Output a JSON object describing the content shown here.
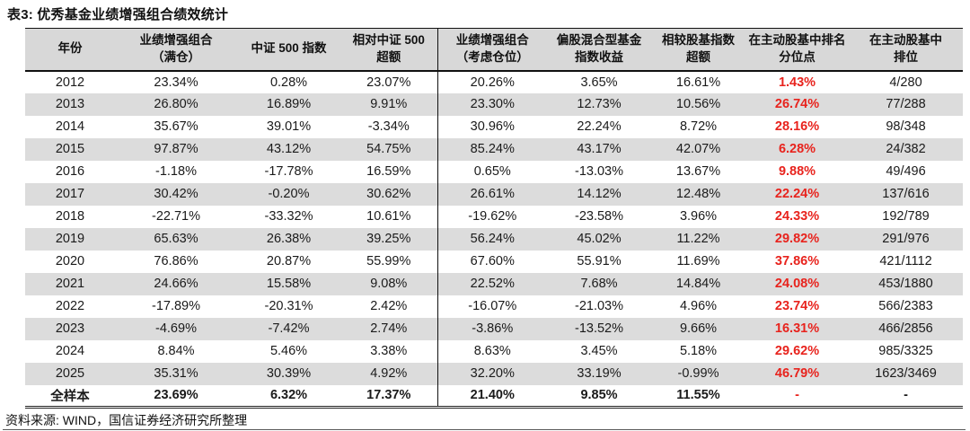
{
  "title": "表3: 优秀基金业绩增强组合绩效统计",
  "source": "资料来源: WIND，国信证券经济研究所整理",
  "colors": {
    "accent_red": "#e8231d",
    "header_bg": "#d8d8d8",
    "stripe_bg": "#dcdcdc",
    "border_dark": "#111111"
  },
  "table": {
    "columns": [
      "年份",
      "业绩增强组合\n（满仓）",
      "中证 500 指数",
      "相对中证 500\n超额",
      "业绩增强组合\n（考虑仓位）",
      "偏股混合型基金\n指数收益",
      "相较股基指数\n超额",
      "在主动股基中排名\n分位点",
      "在主动股基中\n排位"
    ],
    "rows": [
      [
        "2012",
        "23.34%",
        "0.28%",
        "23.07%",
        "20.26%",
        "3.65%",
        "16.61%",
        "1.43%",
        "4/280"
      ],
      [
        "2013",
        "26.80%",
        "16.89%",
        "9.91%",
        "23.30%",
        "12.73%",
        "10.56%",
        "26.74%",
        "77/288"
      ],
      [
        "2014",
        "35.67%",
        "39.01%",
        "-3.34%",
        "30.96%",
        "22.24%",
        "8.72%",
        "28.16%",
        "98/348"
      ],
      [
        "2015",
        "97.87%",
        "43.12%",
        "54.75%",
        "85.24%",
        "43.17%",
        "42.07%",
        "6.28%",
        "24/382"
      ],
      [
        "2016",
        "-1.18%",
        "-17.78%",
        "16.59%",
        "0.65%",
        "-13.03%",
        "13.67%",
        "9.88%",
        "49/496"
      ],
      [
        "2017",
        "30.42%",
        "-0.20%",
        "30.62%",
        "26.61%",
        "14.12%",
        "12.48%",
        "22.24%",
        "137/616"
      ],
      [
        "2018",
        "-22.71%",
        "-33.32%",
        "10.61%",
        "-19.62%",
        "-23.58%",
        "3.96%",
        "24.33%",
        "192/789"
      ],
      [
        "2019",
        "65.63%",
        "26.38%",
        "39.25%",
        "56.24%",
        "45.02%",
        "11.22%",
        "29.82%",
        "291/976"
      ],
      [
        "2020",
        "76.86%",
        "20.87%",
        "55.99%",
        "67.60%",
        "55.91%",
        "11.69%",
        "37.86%",
        "421/1112"
      ],
      [
        "2021",
        "24.66%",
        "15.58%",
        "9.08%",
        "22.52%",
        "7.68%",
        "14.84%",
        "24.08%",
        "453/1880"
      ],
      [
        "2022",
        "-17.89%",
        "-20.31%",
        "2.42%",
        "-16.07%",
        "-21.03%",
        "4.96%",
        "23.74%",
        "566/2383"
      ],
      [
        "2023",
        "-4.69%",
        "-7.42%",
        "2.74%",
        "-3.86%",
        "-13.52%",
        "9.66%",
        "16.31%",
        "466/2856"
      ],
      [
        "2024",
        "8.84%",
        "5.46%",
        "3.38%",
        "8.63%",
        "3.45%",
        "5.18%",
        "29.62%",
        "985/3325"
      ],
      [
        "2025",
        "35.31%",
        "30.39%",
        "4.92%",
        "32.20%",
        "33.19%",
        "-0.99%",
        "46.79%",
        "1623/3469"
      ],
      [
        "全样本",
        "23.69%",
        "6.32%",
        "17.37%",
        "21.40%",
        "9.85%",
        "11.55%",
        "-",
        "-"
      ]
    ],
    "total_row_label": "全样本"
  }
}
